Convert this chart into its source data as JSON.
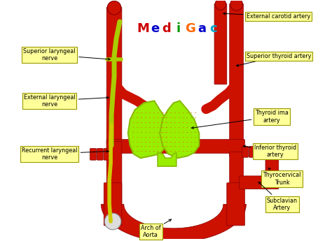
{
  "background_color": "#ffffff",
  "artery_color": "#cc1100",
  "nerve_color_main": "#aacc00",
  "nerve_color_recurrent": "#cccc00",
  "thyroid_color": "#99ee00",
  "thyroid_edge_color": "#88bb00",
  "label_bg": "#ffff99",
  "label_edge": "#999900",
  "title_letters": [
    "M",
    "e",
    "d",
    "i",
    "G",
    "a",
    "c"
  ],
  "title_letter_colors": [
    "#cc0000",
    "#0000cc",
    "#cc0000",
    "#009900",
    "#ff6600",
    "#0000cc",
    "#00aacc"
  ]
}
